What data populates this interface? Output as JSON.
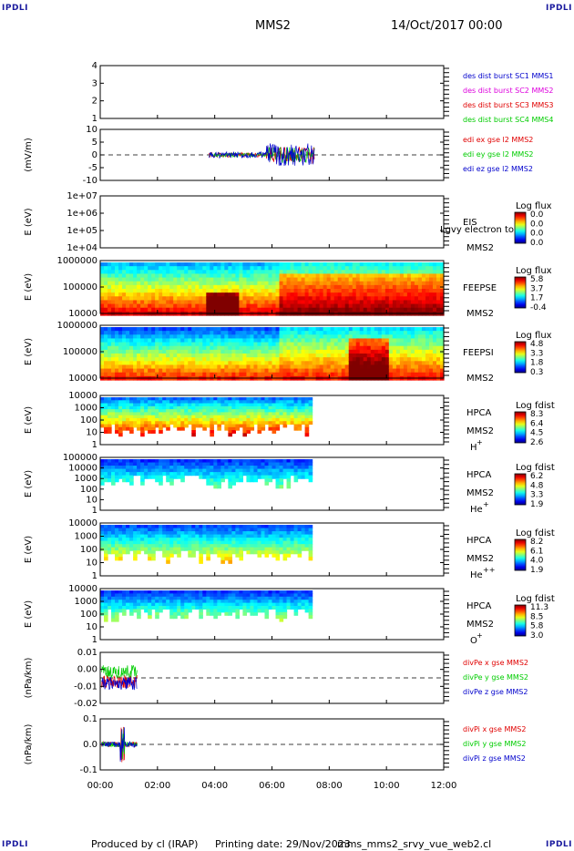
{
  "corner_label": "IPDLI",
  "header": {
    "spacecraft": "MMS2",
    "date": "14/Oct/2017 00:00"
  },
  "footer": {
    "produced_by": "Produced by cl (IRAP)",
    "printing_date": "Printing date: 29/Nov/2023",
    "script": "mms_mms2_srvy_vue_web2.cl"
  },
  "colors": {
    "red": "#e00000",
    "green": "#00cc00",
    "blue": "#0000cc",
    "magenta": "#dd00dd"
  },
  "chart_data": {
    "type": "stacked-timeseries",
    "x_ticks": [
      "00:00",
      "02:00",
      "04:00",
      "06:00",
      "08:00",
      "10:00",
      "12:00"
    ],
    "x_range_hours": [
      0,
      12
    ],
    "panels": [
      {
        "id": "des",
        "type": "line",
        "ylabel": "",
        "ticks": [
          "4",
          "3",
          "2",
          "1"
        ],
        "legend": [
          {
            "text": "des dist burst SC1 MMS1",
            "color": "#0000cc"
          },
          {
            "text": "des dist burst SC2 MMS2",
            "color": "#dd00dd"
          },
          {
            "text": "des dist burst SC3 MMS3",
            "color": "#e00000"
          },
          {
            "text": "des dist burst SC4 MMS4",
            "color": "#00cc00"
          }
        ]
      },
      {
        "id": "edi",
        "type": "line",
        "ylabel": "(mV/m)",
        "ticks": [
          "10",
          "5",
          "0",
          "-5",
          "-10"
        ],
        "legend": [
          {
            "text": "edi ex gse l2 MMS2",
            "color": "#e00000"
          },
          {
            "text": "edi ey gse l2 MMS2",
            "color": "#00cc00"
          },
          {
            "text": "edi ez gse l2 MMS2",
            "color": "#0000cc"
          }
        ]
      },
      {
        "id": "eis",
        "type": "heatmap",
        "ylabel": "E (eV)",
        "ticks": [
          "1e+07",
          "1e+06",
          "1e+05",
          "1e+04"
        ],
        "inst": "EIS",
        "sc": "MMS2",
        "overlay": "Lgvy electron to",
        "scale_title": "Log flux",
        "scale": [
          "0.0",
          "0.0",
          "0.0",
          "0.0"
        ]
      },
      {
        "id": "feepse",
        "type": "heatmap",
        "ylabel": "E (eV)",
        "ticks": [
          "1000000",
          "100000",
          "10000"
        ],
        "inst": "FEEPSE",
        "sc": "MMS2",
        "scale_title": "Log flux",
        "scale": [
          "5.8",
          "3.7",
          "1.7",
          "-0.4"
        ]
      },
      {
        "id": "feepsi",
        "type": "heatmap",
        "ylabel": "E (eV)",
        "ticks": [
          "1000000",
          "100000",
          "10000"
        ],
        "inst": "FEEPSI",
        "sc": "MMS2",
        "scale_title": "Log flux",
        "scale": [
          "4.8",
          "3.3",
          "1.8",
          "0.3"
        ]
      },
      {
        "id": "hpca_h",
        "type": "heatmap",
        "ylabel": "E (eV)",
        "ticks": [
          "10000",
          "1000",
          "100",
          "10",
          "1"
        ],
        "inst": "HPCA",
        "sc": "MMS2",
        "species": "H",
        "sup": "+",
        "scale_title": "Log fdist",
        "scale": [
          "8.3",
          "6.4",
          "4.5",
          "2.6"
        ]
      },
      {
        "id": "hpca_he1",
        "type": "heatmap",
        "ylabel": "E (eV)",
        "ticks": [
          "100000",
          "10000",
          "1000",
          "100",
          "10",
          "1"
        ],
        "inst": "HPCA",
        "sc": "MMS2",
        "species": "He",
        "sup": "+",
        "scale_title": "Log fdist",
        "scale": [
          "6.2",
          "4.8",
          "3.3",
          "1.9"
        ]
      },
      {
        "id": "hpca_he2",
        "type": "heatmap",
        "ylabel": "E (eV)",
        "ticks": [
          "10000",
          "1000",
          "100",
          "10",
          "1"
        ],
        "inst": "HPCA",
        "sc": "MMS2",
        "species": "He",
        "sup": "++",
        "scale_title": "Log fdist",
        "scale": [
          "8.2",
          "6.1",
          "4.0",
          "1.9"
        ]
      },
      {
        "id": "hpca_o",
        "type": "heatmap",
        "ylabel": "E (eV)",
        "ticks": [
          "10000",
          "1000",
          "100",
          "10",
          "1"
        ],
        "inst": "HPCA",
        "sc": "MMS2",
        "species": "O",
        "sup": "+",
        "scale_title": "Log fdist",
        "scale": [
          "11.3",
          "8.5",
          "5.8",
          "3.0"
        ]
      },
      {
        "id": "divpe",
        "type": "line",
        "ylabel": "(nPa/km)",
        "ticks": [
          "0.01",
          "0.00",
          "-0.01",
          "-0.02"
        ],
        "legend": [
          {
            "text": "divPe x gse MMS2",
            "color": "#e00000"
          },
          {
            "text": "divPe y gse MMS2",
            "color": "#00cc00"
          },
          {
            "text": "divPe z gse MMS2",
            "color": "#0000cc"
          }
        ]
      },
      {
        "id": "divpi",
        "type": "line",
        "ylabel": "(nPa/km)",
        "ticks": [
          "0.1",
          "0.0",
          "-0.1"
        ],
        "legend": [
          {
            "text": "divPi x gse MMS2",
            "color": "#e00000"
          },
          {
            "text": "divPi y gse MMS2",
            "color": "#00cc00"
          },
          {
            "text": "divPi z gse MMS2",
            "color": "#0000cc"
          }
        ]
      }
    ]
  }
}
